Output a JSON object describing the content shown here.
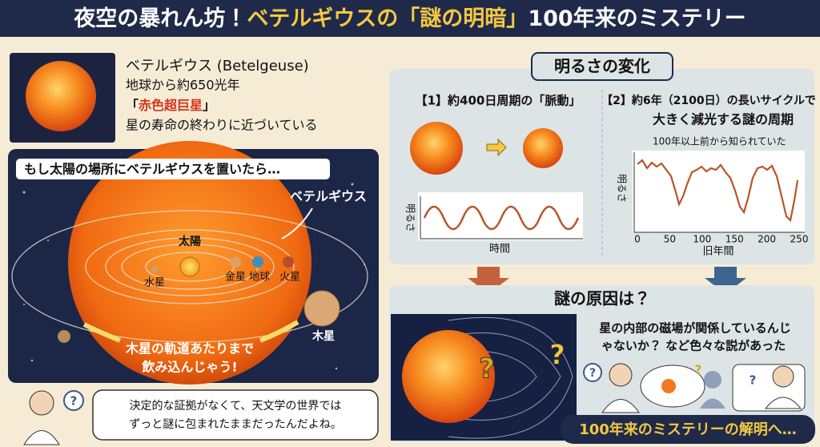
{
  "header": {
    "title_part1": "夜空の暴れん坊！",
    "title_part2": "ベテルギウスの「謎の明暗」",
    "title_part3": "100年来のミステリー"
  },
  "intro": {
    "name": "ベテルギウス (Betelgeuse)",
    "distance": "地球から約650光年",
    "class_open": "「",
    "class_name": "赤色超巨星",
    "class_close": "」",
    "status": "星の寿命の終わりに近づいている"
  },
  "comparison": {
    "heading": "もし太陽の場所にベテルギウスを置いたら…",
    "betelgeuse_label": "ベテルギウス",
    "sun": "太陽",
    "mercury": "水星",
    "venus": "金星",
    "earth": "地球",
    "mars": "火星",
    "jupiter": "木星",
    "caption_line1": "木星の軌道あたりまで",
    "caption_line2": "飲み込んじゃう!"
  },
  "speech_left": {
    "line1": "決定的な証拠がなくて、天文学の世界では",
    "line2": "ずっと謎に包まれたままだったんだよね。"
  },
  "brightness": {
    "heading": "明るさの変化",
    "section1_title": "【1】約400日周期の「脈動」",
    "section1_ylabel": "明るさ",
    "section1_xlabel": "時間",
    "section2_title_line1": "【2】約6年（2100日）の長いサイクルで",
    "section2_title_line2": "大きく減光する謎の周期",
    "section2_annotation": "100年以上前から知られていた",
    "section2_ylabel": "明るさ",
    "section2_xlabel": "旧年間",
    "section2_xticks": [
      0,
      50,
      100,
      150,
      200,
      250
    ]
  },
  "cause": {
    "heading": "謎の原因は？",
    "text_line1": "星の内部の磁場が関係しているんじ",
    "text_line2": "ゃないか？ など色々な説があった",
    "question_mark": "?",
    "banner": "100年来のミステリーの解明へ…"
  }
}
